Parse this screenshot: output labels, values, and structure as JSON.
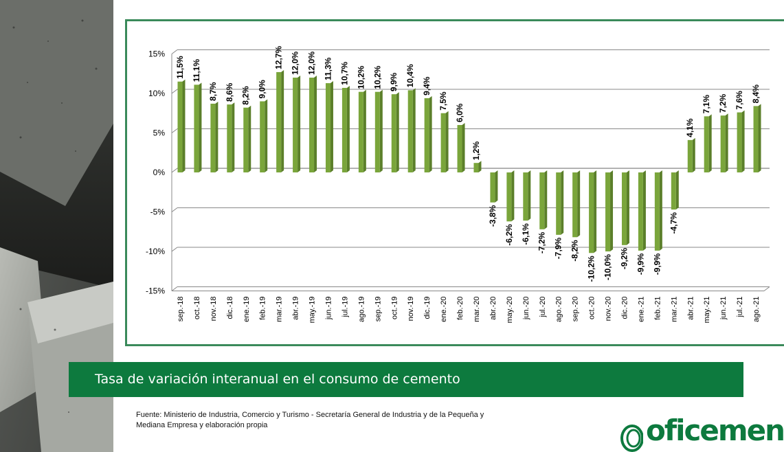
{
  "banner": {
    "title": "Tasa de variación interanual en el consumo de cemento"
  },
  "source": {
    "line1": "Fuente: Ministerio de Industria, Comercio y Turismo - Secretaría General de Industria y de la Pequeña y",
    "line2": "Mediana Empresa y elaboración propia"
  },
  "logo": {
    "text": "oficemen"
  },
  "colors": {
    "bar": "#7aa53b",
    "bar_dark": "#5b7f2a",
    "frame": "#3a8a5a",
    "banner": "#0d7a3e",
    "grid": "#888888"
  },
  "chart_data": {
    "type": "bar",
    "title": "",
    "xlabel": "",
    "ylabel": "",
    "ylim": [
      -15,
      15
    ],
    "yticks": [
      "15%",
      "10%",
      "5%",
      "0%",
      "-5%",
      "-10%",
      "-15%"
    ],
    "ytick_values": [
      15,
      10,
      5,
      0,
      -5,
      -10,
      -15
    ],
    "grid": true,
    "categories": [
      "sep.-18",
      "oct.-18",
      "nov.-18",
      "dic.-18",
      "ene.-19",
      "feb.-19",
      "mar.-19",
      "abr.-19",
      "may.-19",
      "jun.-19",
      "jul.-19",
      "ago.-19",
      "sep.-19",
      "oct.-19",
      "nov.-19",
      "dic.-19",
      "ene.-20",
      "feb.-20",
      "mar.-20",
      "abr.-20",
      "may.-20",
      "jun.-20",
      "jul.-20",
      "ago.-20",
      "sep.-20",
      "oct.-20",
      "nov.-20",
      "dic.-20",
      "ene.-21",
      "feb.-21",
      "mar.-21",
      "abr.-21",
      "may.-21",
      "jun.-21",
      "jul.-21",
      "ago.-21"
    ],
    "values": [
      11.5,
      11.1,
      8.7,
      8.6,
      8.2,
      9.0,
      12.7,
      12.0,
      12.0,
      11.3,
      10.7,
      10.2,
      10.2,
      9.9,
      10.4,
      9.4,
      7.5,
      6.0,
      1.2,
      -3.8,
      -6.2,
      -6.1,
      -7.2,
      -7.9,
      -8.2,
      -10.2,
      -10.0,
      -9.2,
      -9.9,
      -9.9,
      -4.7,
      4.1,
      7.1,
      7.2,
      7.6,
      8.4
    ],
    "labels": [
      "11,5%",
      "11,1%",
      "8,7%",
      "8,6%",
      "8,2%",
      "9,0%",
      "12,7%",
      "12,0%",
      "12,0%",
      "11,3%",
      "10,7%",
      "10,2%",
      "10,2%",
      "9,9%",
      "10,4%",
      "9,4%",
      "7,5%",
      "6,0%",
      "1,2%",
      "-3,8%",
      "-6,2%",
      "-6,1%",
      "-7,2%",
      "-7,9%",
      "-8,2%",
      "-10,2%",
      "-10,0%",
      "-9,2%",
      "-9,9%",
      "-9,9%",
      "-4,7%",
      "4,1%",
      "7,1%",
      "7,2%",
      "7,6%",
      "8,4%"
    ]
  }
}
